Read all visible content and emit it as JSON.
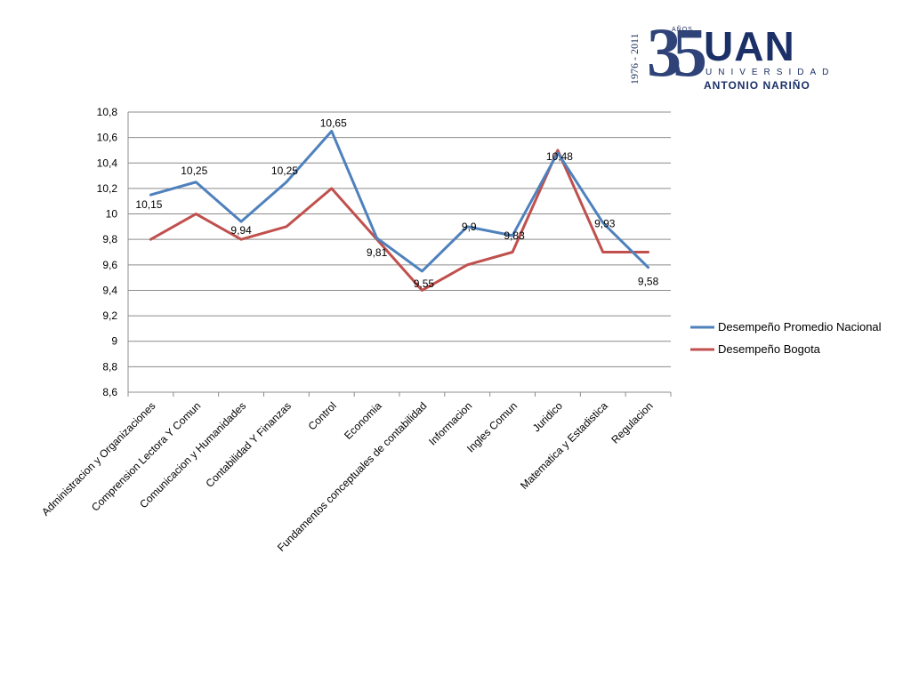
{
  "logo": {
    "years": "1976 - 2011",
    "anos": "AÑOS",
    "number": "35",
    "brand": "UAN",
    "line1": "UNIVERSIDAD",
    "line2": "ANTONIO NARIÑO"
  },
  "chart_data": {
    "type": "line",
    "categories": [
      "Administracion y Organizaciones",
      "Comprension Lectora Y Comun",
      "Comunicacion y Humanidades",
      "Contabilidad Y Finanzas",
      "Control",
      "Economia",
      "Fundamentos conceptuales de contabilidad",
      "Informacion",
      "Ingles Comun",
      "Juridico",
      "Matematica y Estadistica",
      "Regulacion"
    ],
    "series": [
      {
        "name": "Desempeño Promedio Nacional",
        "color": "#4f81bd",
        "values": [
          10.15,
          10.25,
          9.94,
          10.25,
          10.65,
          9.81,
          9.55,
          9.9,
          9.83,
          10.48,
          9.93,
          9.58
        ],
        "labels": [
          "10,15",
          "10,25",
          "9,94",
          "10,25",
          "10,65",
          "9,81",
          "9,55",
          "9,9",
          "9,83",
          "10,48",
          "9,93",
          "9,58"
        ]
      },
      {
        "name": "Desempeño Bogota",
        "color": "#c0504d",
        "values": [
          9.8,
          10.0,
          9.8,
          9.9,
          10.2,
          9.8,
          9.4,
          9.6,
          9.7,
          10.5,
          9.7,
          9.7
        ]
      }
    ],
    "yticks": [
      "10,8",
      "10,6",
      "10,4",
      "10,2",
      "10",
      "9,8",
      "9,6",
      "9,4",
      "9,2",
      "9",
      "8,8",
      "8,6"
    ],
    "ylim": [
      8.6,
      10.8
    ],
    "grid": true,
    "legend": "right"
  }
}
